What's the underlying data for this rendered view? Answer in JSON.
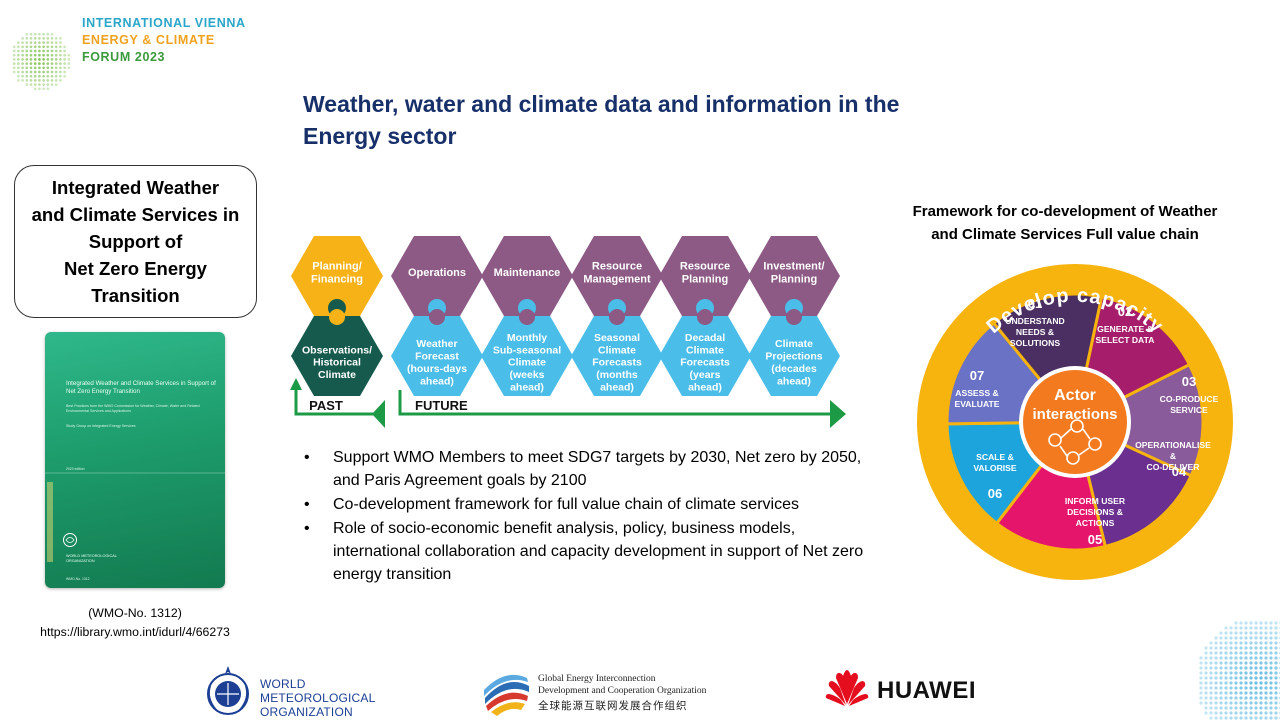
{
  "header": {
    "forum_logo": {
      "line_1": "INTERNATIONAL VIENNA",
      "line_2": "ENERGY & CLIMATE",
      "line_3": "FORUM 2023",
      "icon": "dotted-globe-icon"
    },
    "title_line_1": "Weather, water and climate data and information in the",
    "title_line_2": "Energy sector"
  },
  "left_panel": {
    "report_title_lines": [
      "Integrated Weather",
      "and Climate Services in",
      "Support of",
      "Net Zero Energy",
      "Transition"
    ],
    "cover": {
      "title": "Integrated Weather and Climate Services in Support of Net Zero Energy Transition",
      "subtitle": "Best Practices from the WMO Commission for Weather, Climate, Water and Related Environmental Services and Applications",
      "group": "Study Group on Integrated Energy Services",
      "edition": "2023 edition",
      "publisher": "WORLD METEOROLOGICAL ORGANIZATION",
      "number": "WMO-No. 1312"
    },
    "reference_line_1": "(WMO-No. 1312)",
    "reference_line_2": "https://library.wmo.int/idurl/4/66273"
  },
  "value_chain": {
    "top": [
      {
        "label": [
          "Planning/",
          "Financing"
        ],
        "color": "#f7b217"
      },
      {
        "label": [
          "Operations"
        ],
        "color": "#8c5a84"
      },
      {
        "label": [
          "Maintenance"
        ],
        "color": "#8c5a84"
      },
      {
        "label": [
          "Resource",
          "Management"
        ],
        "color": "#8c5a84"
      },
      {
        "label": [
          "Resource",
          "Planning"
        ],
        "color": "#8c5a84"
      },
      {
        "label": [
          "Investment/",
          "Planning"
        ],
        "color": "#8c5a84"
      }
    ],
    "bottom": [
      {
        "label": [
          "Observations/",
          "Historical",
          "Climate"
        ],
        "color": "#165a4d"
      },
      {
        "label": [
          "Weather",
          "Forecast",
          "(hours-days",
          "ahead)"
        ],
        "color": "#4bbde9"
      },
      {
        "label": [
          "Monthly",
          "Sub-seasonal",
          "Climate",
          "(weeks",
          "ahead)"
        ],
        "color": "#4bbde9"
      },
      {
        "label": [
          "Seasonal",
          "Climate",
          "Forecasts",
          "(months",
          "ahead)"
        ],
        "color": "#4bbde9"
      },
      {
        "label": [
          "Decadal",
          "Climate",
          "Forecasts",
          "(years",
          "ahead)"
        ],
        "color": "#4bbde9"
      },
      {
        "label": [
          "Climate",
          "Projections",
          "(decades",
          "ahead)"
        ],
        "color": "#4bbde9"
      }
    ],
    "past_label": "PAST",
    "future_label": "FUTURE",
    "arrow_color": "#1d9a45"
  },
  "bullets": {
    "marker": "•",
    "items": [
      "Support WMO Members to meet SDG7 targets by 2030, Net zero by 2050, and Paris Agreement goals by 2100",
      "Co-development framework for full value chain of climate services",
      "Role of socio-economic benefit analysis, policy, business models, international collaboration and capacity development in support of Net zero energy transition"
    ]
  },
  "framework": {
    "title_line_1": "Framework for co-development of Weather",
    "title_line_2": "and Climate Services Full value chain",
    "ring_label": "Develop capacity",
    "center_line_1": "Actor",
    "center_line_2": "interactions",
    "center_icon": "network-people-icon",
    "segments": [
      {
        "num": "01",
        "lines": [
          "UNDERSTAND",
          "NEEDS &",
          "SOLUTIONS"
        ],
        "color": "#a61e6b"
      },
      {
        "num": "02",
        "lines": [
          "GENERATE &",
          "SELECT DATA"
        ],
        "color": "#8a5b9a"
      },
      {
        "num": "03",
        "lines": [
          "CO-PRODUCE",
          "SERVICE"
        ],
        "color": "#6a2f8f"
      },
      {
        "num": "04",
        "lines": [
          "OPERATIONALISE",
          "&",
          "CO-DELIVER"
        ],
        "color": "#e5156c"
      },
      {
        "num": "05",
        "lines": [
          "INFORM USER",
          "DECISIONS &",
          "ACTIONS"
        ],
        "color": "#1da4dc"
      },
      {
        "num": "06",
        "lines": [
          "SCALE &",
          "VALORISE"
        ],
        "color": "#6a72c6"
      },
      {
        "num": "07",
        "lines": [
          "ASSESS &",
          "EVALUATE"
        ],
        "color": "#4b2f63"
      }
    ],
    "ring_color": "#f7b40f",
    "center_color": "#f37a1f"
  },
  "footer": {
    "wmo_logo": {
      "line_1": "WORLD",
      "line_2": "METEOROLOGICAL",
      "line_3": "ORGANIZATION",
      "icon": "wmo-emblem-icon"
    },
    "geidco_logo": {
      "line_1": "Global Energy Interconnection",
      "line_2": "Development and Cooperation Organization",
      "line_3": "全球能源互联网发展合作组织",
      "icon": "geidco-globe-icon"
    },
    "huawei_logo": {
      "word": "HUAWEI",
      "icon": "huawei-flower-icon"
    }
  }
}
